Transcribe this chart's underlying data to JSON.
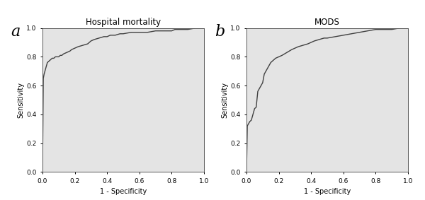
{
  "title_a": "Hospital mortality",
  "title_b": "MODS",
  "label_a": "a",
  "label_b": "b",
  "xlabel": "1 - Specificity",
  "ylabel": "Sensitivity",
  "xlim": [
    0.0,
    1.0
  ],
  "ylim": [
    0.0,
    1.0
  ],
  "xticks": [
    0.0,
    0.2,
    0.4,
    0.6,
    0.8,
    1.0
  ],
  "yticks": [
    0.0,
    0.2,
    0.4,
    0.6,
    0.8,
    1.0
  ],
  "bg_color": "#e4e4e4",
  "curve_color": "#404040",
  "curve_linewidth": 1.0,
  "roc_a_fpr": [
    0.0,
    0.005,
    0.01,
    0.015,
    0.02,
    0.025,
    0.03,
    0.04,
    0.05,
    0.06,
    0.07,
    0.08,
    0.09,
    0.1,
    0.11,
    0.12,
    0.13,
    0.15,
    0.17,
    0.18,
    0.2,
    0.22,
    0.25,
    0.28,
    0.3,
    0.32,
    0.35,
    0.38,
    0.4,
    0.42,
    0.45,
    0.48,
    0.5,
    0.55,
    0.6,
    0.65,
    0.7,
    0.75,
    0.8,
    0.82,
    0.85,
    0.88,
    0.9,
    0.95,
    1.0
  ],
  "roc_a_tpr": [
    0.0,
    0.65,
    0.68,
    0.7,
    0.72,
    0.74,
    0.76,
    0.77,
    0.78,
    0.79,
    0.79,
    0.8,
    0.8,
    0.8,
    0.81,
    0.81,
    0.82,
    0.83,
    0.84,
    0.85,
    0.86,
    0.87,
    0.88,
    0.89,
    0.91,
    0.92,
    0.93,
    0.94,
    0.94,
    0.95,
    0.95,
    0.96,
    0.96,
    0.97,
    0.97,
    0.97,
    0.98,
    0.98,
    0.98,
    0.99,
    0.99,
    0.99,
    0.99,
    1.0,
    1.0
  ],
  "roc_b_fpr": [
    0.0,
    0.005,
    0.01,
    0.015,
    0.02,
    0.03,
    0.04,
    0.05,
    0.06,
    0.07,
    0.08,
    0.09,
    0.1,
    0.11,
    0.12,
    0.13,
    0.14,
    0.15,
    0.16,
    0.17,
    0.18,
    0.2,
    0.22,
    0.25,
    0.28,
    0.3,
    0.32,
    0.35,
    0.38,
    0.4,
    0.42,
    0.45,
    0.48,
    0.5,
    0.55,
    0.6,
    0.65,
    0.7,
    0.75,
    0.8,
    0.85,
    0.9,
    0.95,
    1.0
  ],
  "roc_b_tpr": [
    0.0,
    0.32,
    0.33,
    0.34,
    0.35,
    0.36,
    0.4,
    0.44,
    0.45,
    0.56,
    0.58,
    0.6,
    0.62,
    0.68,
    0.7,
    0.72,
    0.74,
    0.76,
    0.77,
    0.78,
    0.79,
    0.8,
    0.81,
    0.83,
    0.85,
    0.86,
    0.87,
    0.88,
    0.89,
    0.9,
    0.91,
    0.92,
    0.93,
    0.93,
    0.94,
    0.95,
    0.96,
    0.97,
    0.98,
    0.99,
    0.99,
    0.99,
    1.0,
    1.0
  ],
  "tick_fontsize": 6.5,
  "label_fontsize": 7,
  "title_fontsize": 8.5,
  "panel_label_fontsize": 16
}
